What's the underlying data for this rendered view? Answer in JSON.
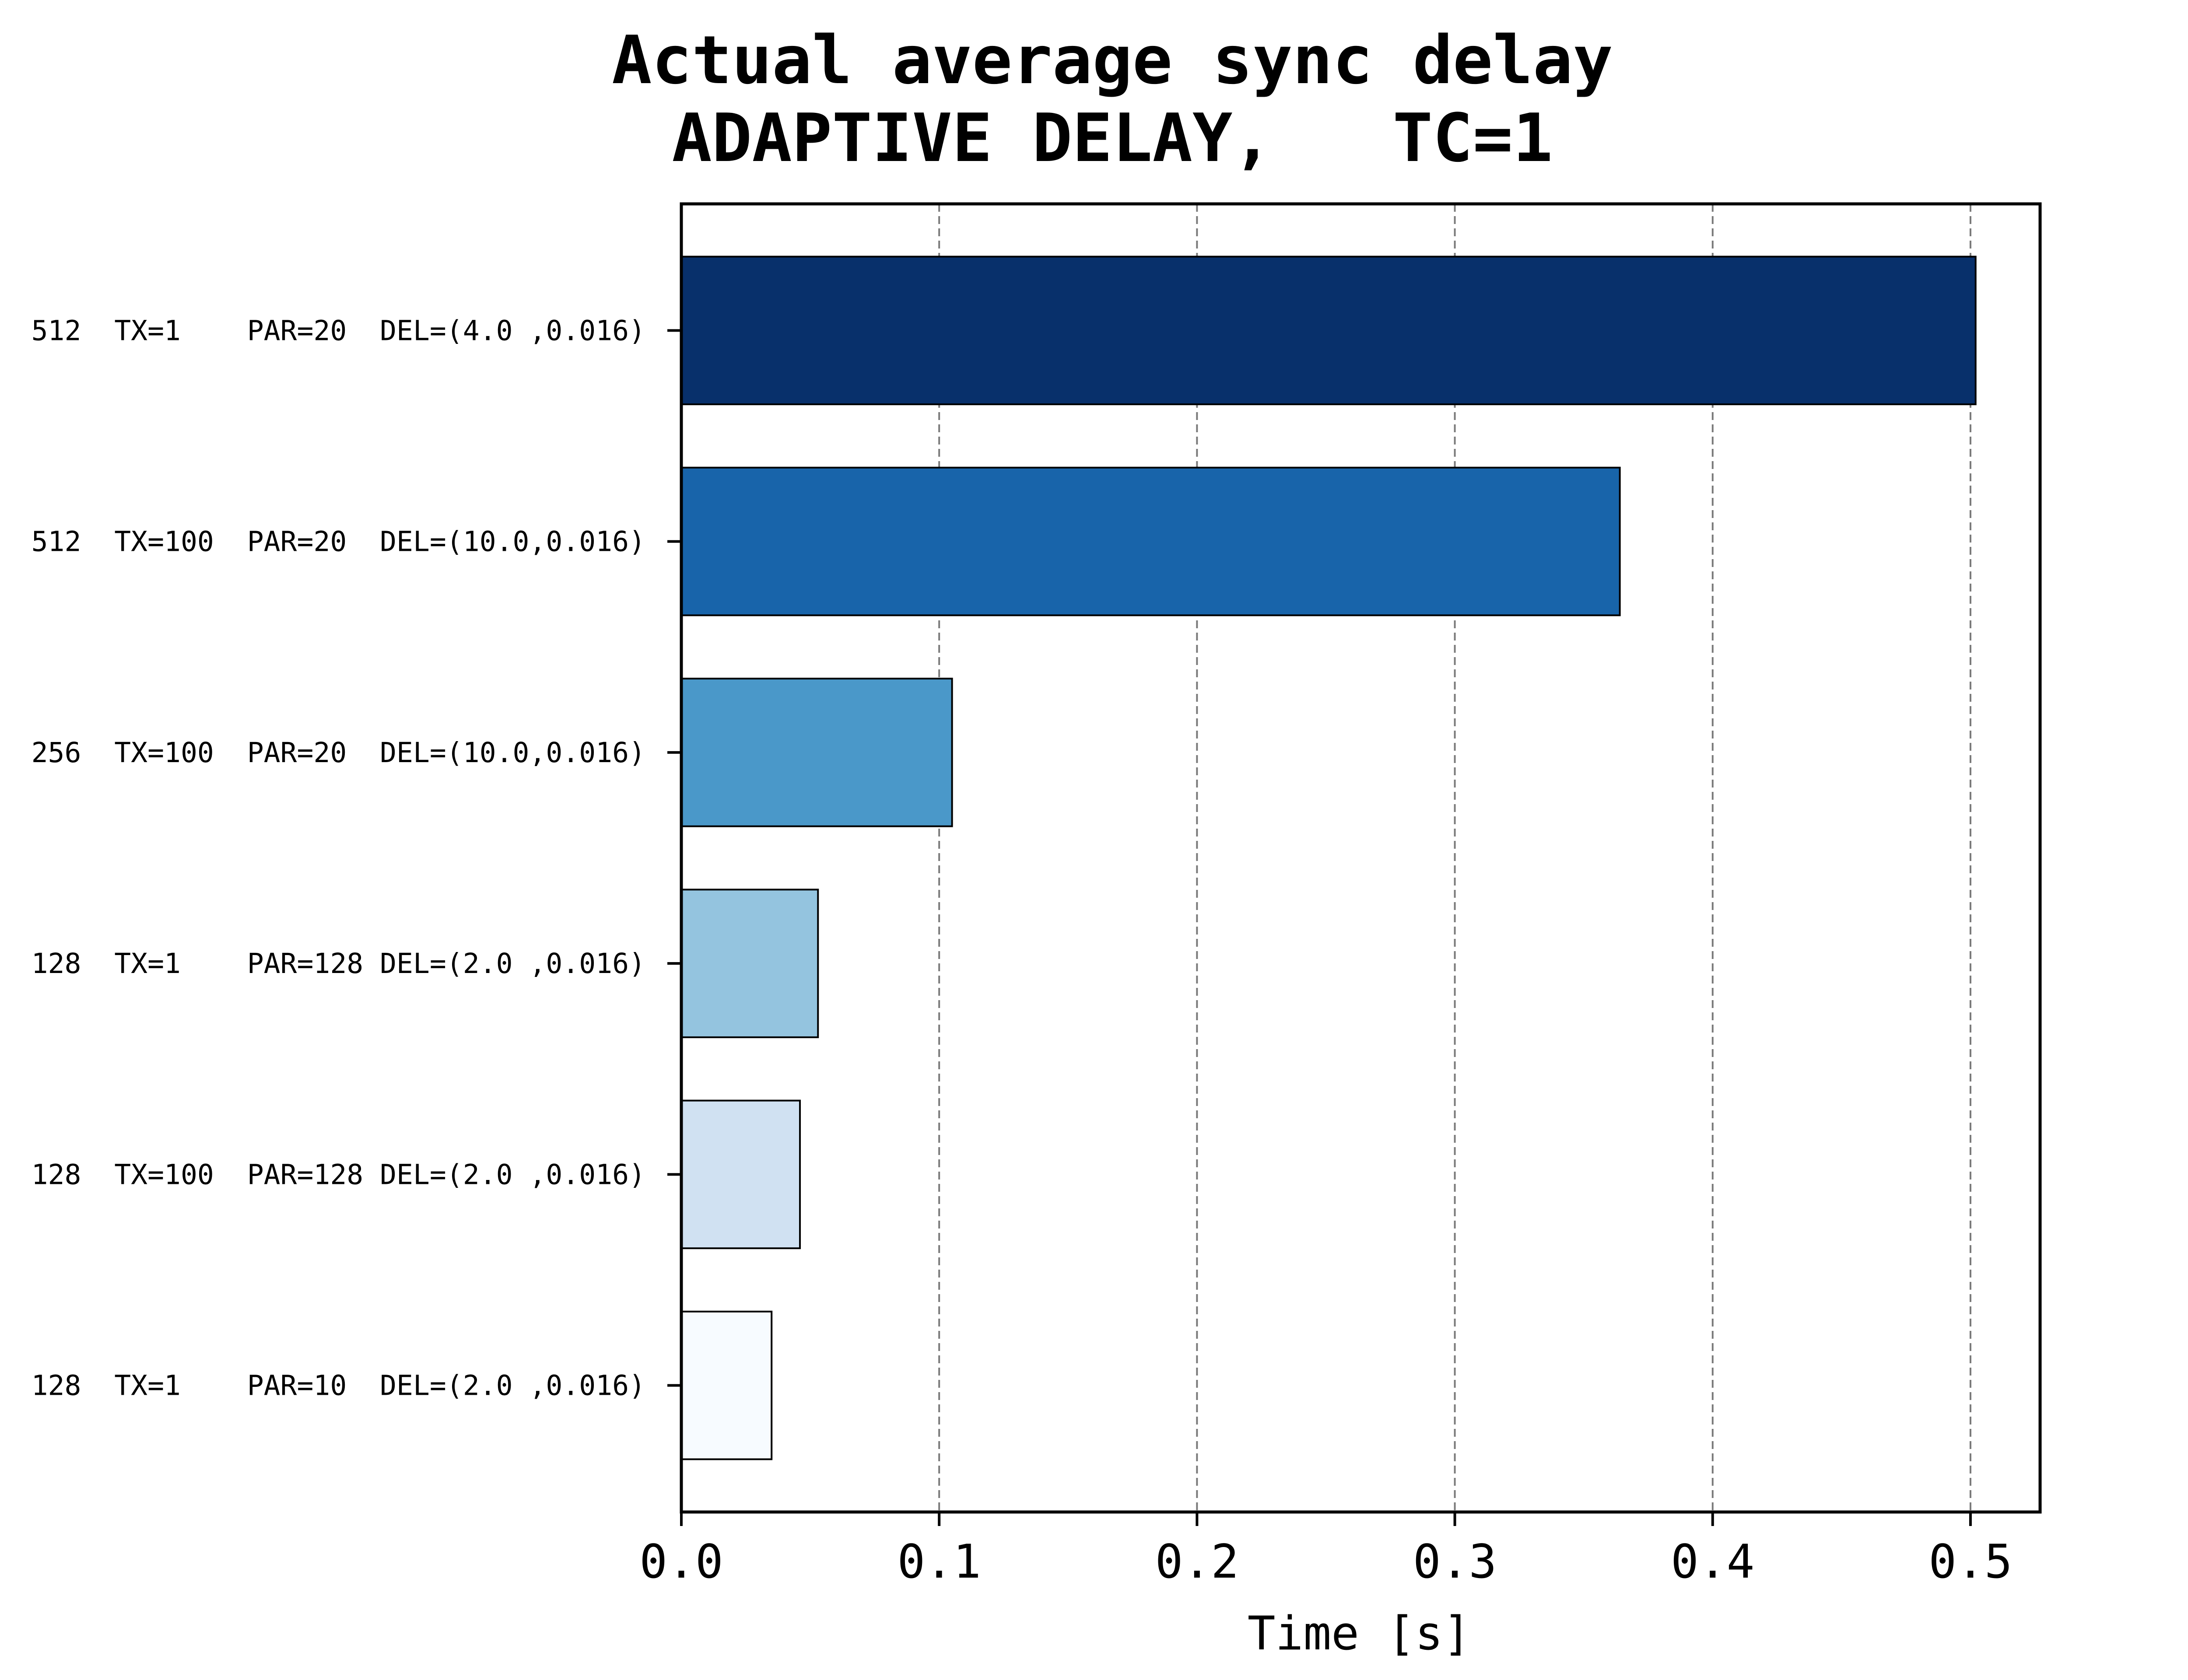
{
  "chart_data": {
    "type": "bar",
    "orientation": "horizontal",
    "title_lines": [
      "Actual average sync delay",
      "ADAPTIVE DELAY,   TC=1"
    ],
    "xlabel": "Time [s]",
    "ylabel": "",
    "xlim": [
      0,
      0.527
    ],
    "xticks": [
      0.0,
      0.1,
      0.2,
      0.3,
      0.4,
      0.5
    ],
    "xtick_labels": [
      "0.0",
      "0.1",
      "0.2",
      "0.3",
      "0.4",
      "0.5"
    ],
    "grid": "x-dashed",
    "categories": [
      "512  TX=1    PAR=20  DEL=(4.0 ,0.016)",
      "512  TX=100  PAR=20  DEL=(10.0,0.016)",
      "256  TX=100  PAR=20  DEL=(10.0,0.016)",
      "128  TX=1    PAR=128 DEL=(2.0 ,0.016)",
      "128  TX=100  PAR=128 DEL=(2.0 ,0.016)",
      "128  TX=1    PAR=10  DEL=(2.0 ,0.016)"
    ],
    "values": [
      0.502,
      0.364,
      0.105,
      0.053,
      0.046,
      0.035
    ],
    "colors": [
      "#08306b",
      "#1864aa",
      "#4a98c9",
      "#94c4df",
      "#d0e1f2",
      "#f7fbff"
    ]
  }
}
